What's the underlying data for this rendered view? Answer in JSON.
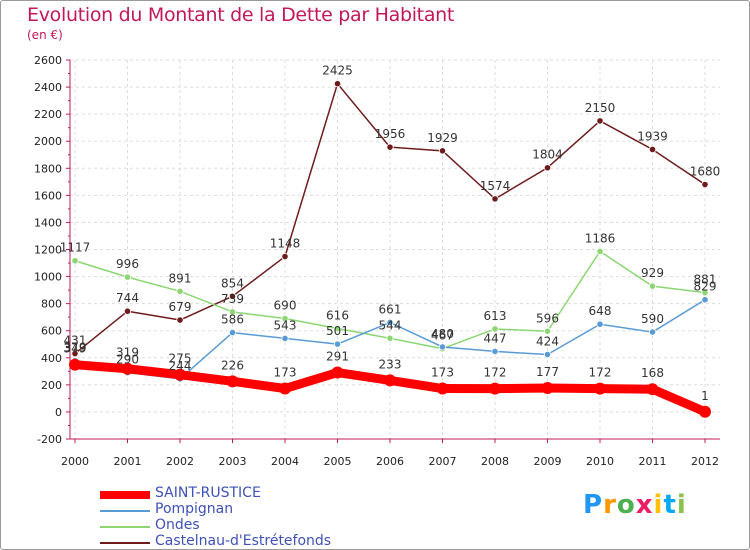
{
  "title": "Evolution du Montant de la Dette par Habitant",
  "unit": "(en €)",
  "logo": {
    "text": "Proxiti",
    "letters": [
      "P",
      "r",
      "o",
      "x",
      "i",
      "t",
      "i"
    ],
    "colors": [
      "#2196f3",
      "#ff9800",
      "#4caf50",
      "#e91e63",
      "#ffc107",
      "#03a9f4",
      "#8bc34a"
    ]
  },
  "chart_data": {
    "type": "line",
    "x": [
      "2000",
      "2001",
      "2002",
      "2003",
      "2004",
      "2005",
      "2006",
      "2007",
      "2008",
      "2009",
      "2010",
      "2011",
      "2012"
    ],
    "ylim": [
      -200,
      2600
    ],
    "yticks": [
      "-200",
      "0",
      "200",
      "400",
      "600",
      "800",
      "1000",
      "1200",
      "1400",
      "1600",
      "1800",
      "2000",
      "2200",
      "2400",
      "2600"
    ],
    "grid": true,
    "legend_position": "bottom-left",
    "series": [
      {
        "name": "Castelnau-d'Estrétefonds",
        "color": "#6d1b1b",
        "values": [
          431,
          744,
          679,
          854,
          1148,
          2425,
          1956,
          1929,
          1574,
          1804,
          2150,
          1939,
          1680
        ],
        "labels": [
          "431",
          "744",
          "679",
          "854",
          "1148",
          "2425",
          "1956",
          "1929",
          "1574",
          "1804",
          "2150",
          "1939",
          "1680"
        ]
      },
      {
        "name": "Ondes",
        "color": "#8bd672",
        "values": [
          1117,
          996,
          891,
          739,
          690,
          616,
          544,
          467,
          613,
          596,
          1186,
          929,
          881
        ],
        "labels": [
          "1117",
          "996",
          "891",
          "739",
          "690",
          "616",
          "544",
          "467",
          "613",
          "596",
          "1186",
          "929",
          "881"
        ]
      },
      {
        "name": "Pompignan",
        "color": "#5a9bd5",
        "values": [
          379,
          290,
          244,
          586,
          543,
          501,
          661,
          480,
          447,
          424,
          648,
          590,
          829
        ],
        "labels": [
          "379",
          "290",
          "244",
          "586",
          "543",
          "501",
          "661",
          "480",
          "447",
          "424",
          "648",
          "590",
          "829"
        ]
      },
      {
        "name": "SAINT-RUSTICE",
        "color": "#ff0000",
        "values": [
          349,
          319,
          275,
          226,
          173,
          291,
          233,
          173,
          172,
          177,
          172,
          168,
          1
        ],
        "labels": [
          "349",
          "319",
          "275",
          "226",
          "173",
          "291",
          "233",
          "173",
          "172",
          "177",
          "172",
          "168",
          "1"
        ]
      }
    ],
    "legend_order": [
      "SAINT-RUSTICE",
      "Pompignan",
      "Ondes",
      "Castelnau-d'Estrétefonds"
    ]
  }
}
